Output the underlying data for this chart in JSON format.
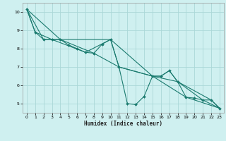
{
  "background_color": "#cff0f0",
  "grid_color": "#aad8d8",
  "line_color": "#1a7a6e",
  "marker_color": "#1a7a6e",
  "xlabel": "Humidex (Indice chaleur)",
  "xlim": [
    -0.5,
    23.5
  ],
  "ylim": [
    4.5,
    10.5
  ],
  "yticks": [
    5,
    6,
    7,
    8,
    9,
    10
  ],
  "xticks": [
    0,
    1,
    2,
    3,
    4,
    5,
    6,
    7,
    8,
    9,
    10,
    11,
    12,
    13,
    14,
    15,
    16,
    17,
    18,
    19,
    20,
    21,
    22,
    23
  ],
  "series_main": [
    [
      0,
      10.15
    ],
    [
      1,
      8.9
    ],
    [
      2,
      8.5
    ],
    [
      3,
      8.5
    ],
    [
      4,
      8.5
    ],
    [
      5,
      8.2
    ],
    [
      6,
      8.0
    ],
    [
      7,
      7.8
    ],
    [
      8,
      7.75
    ],
    [
      9,
      8.25
    ],
    [
      10,
      8.5
    ],
    [
      11,
      7.0
    ],
    [
      12,
      5.0
    ],
    [
      13,
      4.95
    ],
    [
      14,
      5.4
    ],
    [
      15,
      6.5
    ],
    [
      16,
      6.5
    ],
    [
      17,
      6.8
    ],
    [
      18,
      6.2
    ],
    [
      19,
      5.35
    ],
    [
      20,
      5.3
    ],
    [
      21,
      5.2
    ],
    [
      22,
      5.2
    ],
    [
      23,
      4.75
    ]
  ],
  "series_smooth": [
    [
      0,
      10.15
    ],
    [
      2,
      8.5
    ],
    [
      4,
      8.5
    ],
    [
      10,
      8.5
    ],
    [
      15,
      6.5
    ],
    [
      18,
      6.2
    ],
    [
      21,
      5.2
    ],
    [
      23,
      4.75
    ]
  ],
  "series_trend": [
    [
      0,
      10.15
    ],
    [
      4,
      8.5
    ],
    [
      8,
      7.75
    ],
    [
      11,
      7.0
    ],
    [
      15,
      6.5
    ],
    [
      19,
      5.35
    ],
    [
      23,
      4.75
    ]
  ],
  "series_extra": [
    [
      0,
      10.15
    ],
    [
      1,
      8.9
    ],
    [
      3,
      8.5
    ],
    [
      7,
      7.8
    ],
    [
      10,
      8.5
    ],
    [
      11,
      7.0
    ],
    [
      15,
      6.5
    ],
    [
      16,
      6.5
    ],
    [
      17,
      6.8
    ],
    [
      18,
      6.2
    ],
    [
      22,
      5.2
    ],
    [
      23,
      4.75
    ]
  ]
}
